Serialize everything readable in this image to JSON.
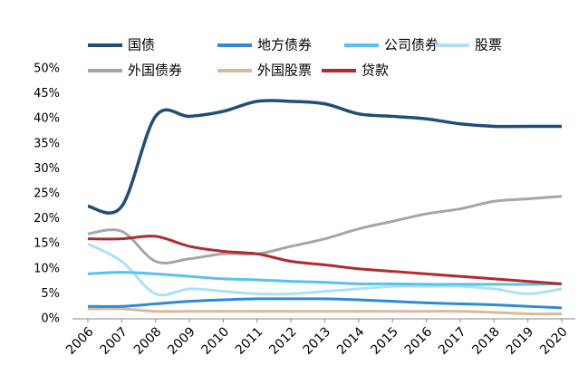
{
  "chart_data": {
    "type": "line",
    "x": [
      "2006",
      "2007",
      "2008",
      "2009",
      "2010",
      "2011",
      "2012",
      "2013",
      "2014",
      "2015",
      "2016",
      "2017",
      "2018",
      "2019",
      "2020"
    ],
    "ylim": [
      0,
      50
    ],
    "yticks": [
      {
        "value": 0,
        "label": "0%"
      },
      {
        "value": 5,
        "label": "5%"
      },
      {
        "value": 10,
        "label": "10%"
      },
      {
        "value": 15,
        "label": "15%"
      },
      {
        "value": 20,
        "label": "20%"
      },
      {
        "value": 25,
        "label": "25%"
      },
      {
        "value": 30,
        "label": "30%"
      },
      {
        "value": 35,
        "label": "35%"
      },
      {
        "value": 40,
        "label": "40%"
      },
      {
        "value": 45,
        "label": "45%"
      },
      {
        "value": 50,
        "label": "50%"
      }
    ],
    "grid": false,
    "legend": "top",
    "series": [
      {
        "name": "国债",
        "color": "#1f4e79",
        "values": [
          22.5,
          22.5,
          40.5,
          40.5,
          41.5,
          43.5,
          43.5,
          43,
          41,
          40.5,
          40,
          39,
          38.5,
          38.5,
          38.5
        ]
      },
      {
        "name": "地方债券",
        "color": "#2e8bd6",
        "values": [
          2.5,
          2.5,
          3,
          3.5,
          3.8,
          4,
          4,
          4,
          3.8,
          3.5,
          3.2,
          3,
          2.8,
          2.5,
          2.2
        ]
      },
      {
        "name": "公司债券",
        "color": "#56c2f0",
        "values": [
          9,
          9.3,
          9,
          8.5,
          8,
          7.8,
          7.5,
          7.3,
          7,
          7,
          6.9,
          6.9,
          6.9,
          6.9,
          7
        ]
      },
      {
        "name": "股票",
        "color": "#aee0f7",
        "values": [
          15,
          11.5,
          5,
          6,
          5.5,
          5,
          5,
          5.5,
          6,
          6.5,
          6.5,
          6.5,
          6,
          5,
          6
        ]
      },
      {
        "name": "外国债券",
        "color": "#a6a6a6",
        "values": [
          17,
          17.5,
          11.5,
          12,
          13,
          13,
          14.5,
          16,
          18,
          19.5,
          21,
          22,
          23.5,
          24,
          24.5
        ]
      },
      {
        "name": "外国股票",
        "color": "#d9b99b",
        "values": [
          2,
          2,
          1.5,
          1.5,
          1.5,
          1.5,
          1.5,
          1.5,
          1.5,
          1.5,
          1.5,
          1.5,
          1.3,
          1,
          1
        ]
      },
      {
        "name": "贷款",
        "color": "#b22a2e",
        "values": [
          16,
          16,
          16.5,
          14.5,
          13.5,
          13,
          11.5,
          10.8,
          10,
          9.5,
          9,
          8.5,
          8,
          7.5,
          7
        ]
      }
    ]
  }
}
